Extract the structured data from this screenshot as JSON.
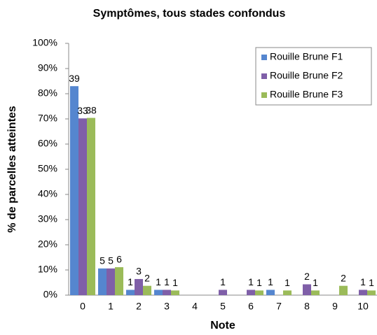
{
  "chart_data": {
    "type": "bar",
    "title": "Symptômes, tous stades confondus",
    "xlabel": "Note",
    "ylabel": "% de parcelles atteintes",
    "categories": [
      "0",
      "1",
      "2",
      "3",
      "4",
      "5",
      "6",
      "7",
      "8",
      "9",
      "10"
    ],
    "series": [
      {
        "name": "Rouille Brune F1",
        "color": "#5586cf",
        "values": [
          83,
          10.6,
          2.1,
          2.1,
          0,
          0,
          0,
          2.1,
          0,
          0,
          0
        ],
        "counts": [
          39,
          5,
          1,
          1,
          null,
          null,
          null,
          1,
          null,
          null,
          null
        ]
      },
      {
        "name": "Rouille Brune F2",
        "color": "#7f5fa8",
        "values": [
          70.2,
          10.6,
          6.4,
          2.1,
          0,
          2.1,
          2.1,
          0,
          4.3,
          0,
          2.1
        ],
        "counts": [
          33,
          5,
          3,
          1,
          null,
          1,
          1,
          null,
          2,
          null,
          1
        ]
      },
      {
        "name": "Rouille Brune F3",
        "color": "#9bbb59",
        "values": [
          70.4,
          11.1,
          3.7,
          1.85,
          0,
          0,
          1.85,
          1.85,
          1.85,
          3.7,
          1.85
        ],
        "counts": [
          38,
          6,
          2,
          1,
          null,
          null,
          1,
          1,
          1,
          2,
          1
        ]
      }
    ],
    "ylim": [
      0,
      100
    ],
    "yticks": [
      {
        "value": 0,
        "label": "0%"
      },
      {
        "value": 10,
        "label": "10%"
      },
      {
        "value": 20,
        "label": "20%"
      },
      {
        "value": 30,
        "label": "30%"
      },
      {
        "value": 40,
        "label": "40%"
      },
      {
        "value": 50,
        "label": "50%"
      },
      {
        "value": 60,
        "label": "60%"
      },
      {
        "value": 70,
        "label": "70%"
      },
      {
        "value": 80,
        "label": "80%"
      },
      {
        "value": 90,
        "label": "90%"
      },
      {
        "value": 100,
        "label": "100%"
      }
    ],
    "legend": "upper right",
    "grid": false
  }
}
